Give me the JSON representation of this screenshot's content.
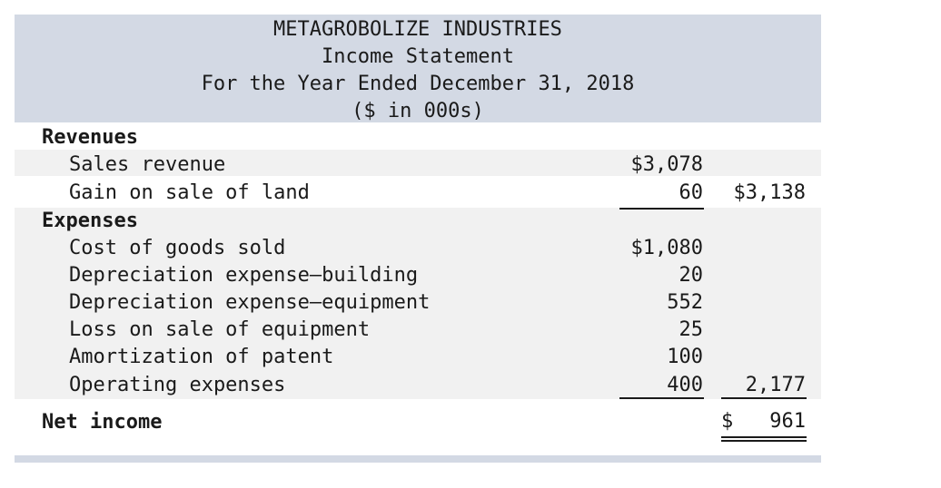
{
  "header": {
    "company": "METAGROBOLIZE INDUSTRIES",
    "title": "Income Statement",
    "period": "For the Year Ended December 31, 2018",
    "units": "($ in 000s)"
  },
  "revenues": {
    "heading": "Revenues",
    "items": [
      {
        "label": "Sales revenue",
        "amount": "$3,078"
      },
      {
        "label": "Gain on sale of land",
        "amount": "60"
      }
    ],
    "total": "$3,138"
  },
  "expenses": {
    "heading": "Expenses",
    "items": [
      {
        "label": "Cost of goods sold",
        "amount": "$1,080"
      },
      {
        "label": "Depreciation expense—building",
        "amount": "20"
      },
      {
        "label": "Depreciation expense—equipment",
        "amount": "552"
      },
      {
        "label": "Loss on sale of equipment",
        "amount": "25"
      },
      {
        "label": "Amortization of patent",
        "amount": "100"
      },
      {
        "label": "Operating expenses",
        "amount": "400"
      }
    ],
    "total": "2,177"
  },
  "net_income": {
    "label": "Net income",
    "currency": "$",
    "amount": "961"
  },
  "colors": {
    "header_bg": "#d3d9e4",
    "row_band": "#f1f1f1",
    "text": "#1a1a1a"
  }
}
